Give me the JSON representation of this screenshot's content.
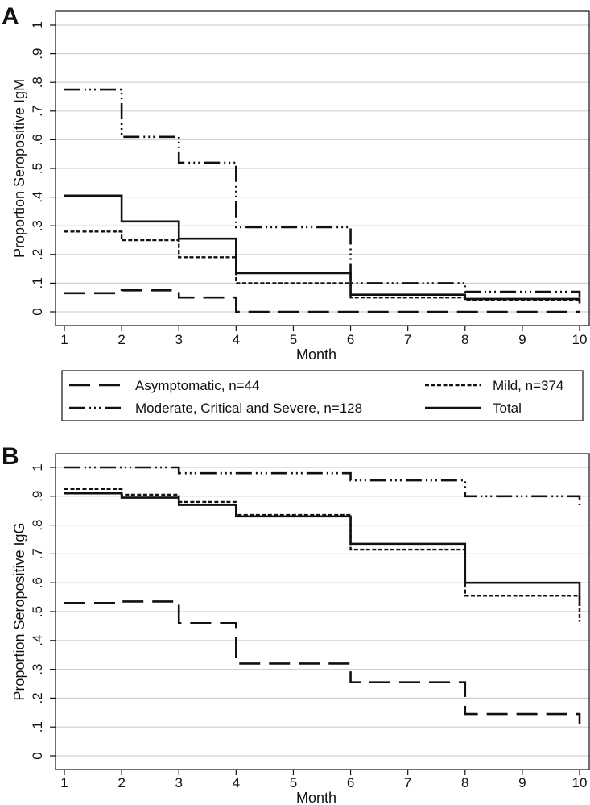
{
  "colors": {
    "line": "#111111",
    "grid": "#d0d0d0",
    "background": "#ffffff"
  },
  "legend": {
    "entries": [
      {
        "series": "asymptomatic",
        "label": "Asymptomatic, n=44"
      },
      {
        "series": "mild",
        "label": "Mild, n=374"
      },
      {
        "series": "moderate",
        "label": "Moderate, Critical and Severe, n=128"
      },
      {
        "series": "total",
        "label": "Total"
      }
    ]
  },
  "chart_data": [
    {
      "panel": "A",
      "type": "line",
      "step": true,
      "title": "",
      "xlabel": "Month",
      "ylabel": "Proportion Seropositive IgM",
      "xlim": [
        1,
        10
      ],
      "ylim": [
        0,
        1
      ],
      "x_ticks": [
        "1",
        "2",
        "3",
        "4",
        "5",
        "6",
        "7",
        "8",
        "9",
        "10"
      ],
      "y_ticks": [
        "0",
        ".1",
        ".2",
        ".3",
        ".4",
        ".5",
        ".6",
        ".7",
        ".8",
        ".9",
        "1"
      ],
      "grid": true,
      "series": [
        {
          "name": "Asymptomatic, n=44",
          "key": "asymptomatic",
          "x": [
            1,
            2,
            3,
            4,
            10
          ],
          "y": [
            0.065,
            0.075,
            0.05,
            0.0,
            0.0
          ],
          "end_y": 0.0
        },
        {
          "name": "Mild, n=374",
          "key": "mild",
          "x": [
            1,
            2,
            3,
            4,
            6,
            8,
            10
          ],
          "y": [
            0.28,
            0.25,
            0.19,
            0.1,
            0.05,
            0.04,
            0.04
          ],
          "end_y": 0.03
        },
        {
          "name": "Moderate, Critical and Severe, n=128",
          "key": "moderate",
          "x": [
            1,
            2,
            3,
            4,
            6,
            8,
            10
          ],
          "y": [
            0.775,
            0.61,
            0.52,
            0.295,
            0.1,
            0.07,
            0.07
          ],
          "end_y": 0.05
        },
        {
          "name": "Total",
          "key": "total",
          "x": [
            1,
            2,
            3,
            4,
            6,
            8,
            10
          ],
          "y": [
            0.405,
            0.315,
            0.255,
            0.135,
            0.06,
            0.045,
            0.045
          ],
          "end_y": 0.03
        }
      ]
    },
    {
      "panel": "B",
      "type": "line",
      "step": true,
      "title": "",
      "xlabel": "Month",
      "ylabel": "Proportion Seropositive IgG",
      "xlim": [
        1,
        10
      ],
      "ylim": [
        0,
        1
      ],
      "x_ticks": [
        "1",
        "2",
        "3",
        "4",
        "5",
        "6",
        "7",
        "8",
        "9",
        "10"
      ],
      "y_ticks": [
        "0",
        ".1",
        ".2",
        ".3",
        ".4",
        ".5",
        ".6",
        ".7",
        ".8",
        ".9",
        "1"
      ],
      "grid": true,
      "series": [
        {
          "name": "Asymptomatic, n=44",
          "key": "asymptomatic",
          "x": [
            1,
            2,
            3,
            4,
            6,
            8,
            10
          ],
          "y": [
            0.53,
            0.535,
            0.46,
            0.32,
            0.255,
            0.145,
            0.145
          ],
          "end_y": 0.11
        },
        {
          "name": "Mild, n=374",
          "key": "mild",
          "x": [
            1,
            2,
            3,
            4,
            6,
            8,
            10
          ],
          "y": [
            0.925,
            0.905,
            0.88,
            0.835,
            0.715,
            0.555,
            0.555
          ],
          "end_y": 0.465
        },
        {
          "name": "Moderate, Critical and Severe, n=128",
          "key": "moderate",
          "x": [
            1,
            2,
            3,
            4,
            6,
            8,
            10
          ],
          "y": [
            1.0,
            1.0,
            0.98,
            0.98,
            0.955,
            0.9,
            0.9
          ],
          "end_y": 0.86
        },
        {
          "name": "Total",
          "key": "total",
          "x": [
            1,
            2,
            3,
            4,
            6,
            8,
            10
          ],
          "y": [
            0.91,
            0.895,
            0.87,
            0.83,
            0.735,
            0.6,
            0.6
          ],
          "end_y": 0.52
        }
      ]
    }
  ]
}
